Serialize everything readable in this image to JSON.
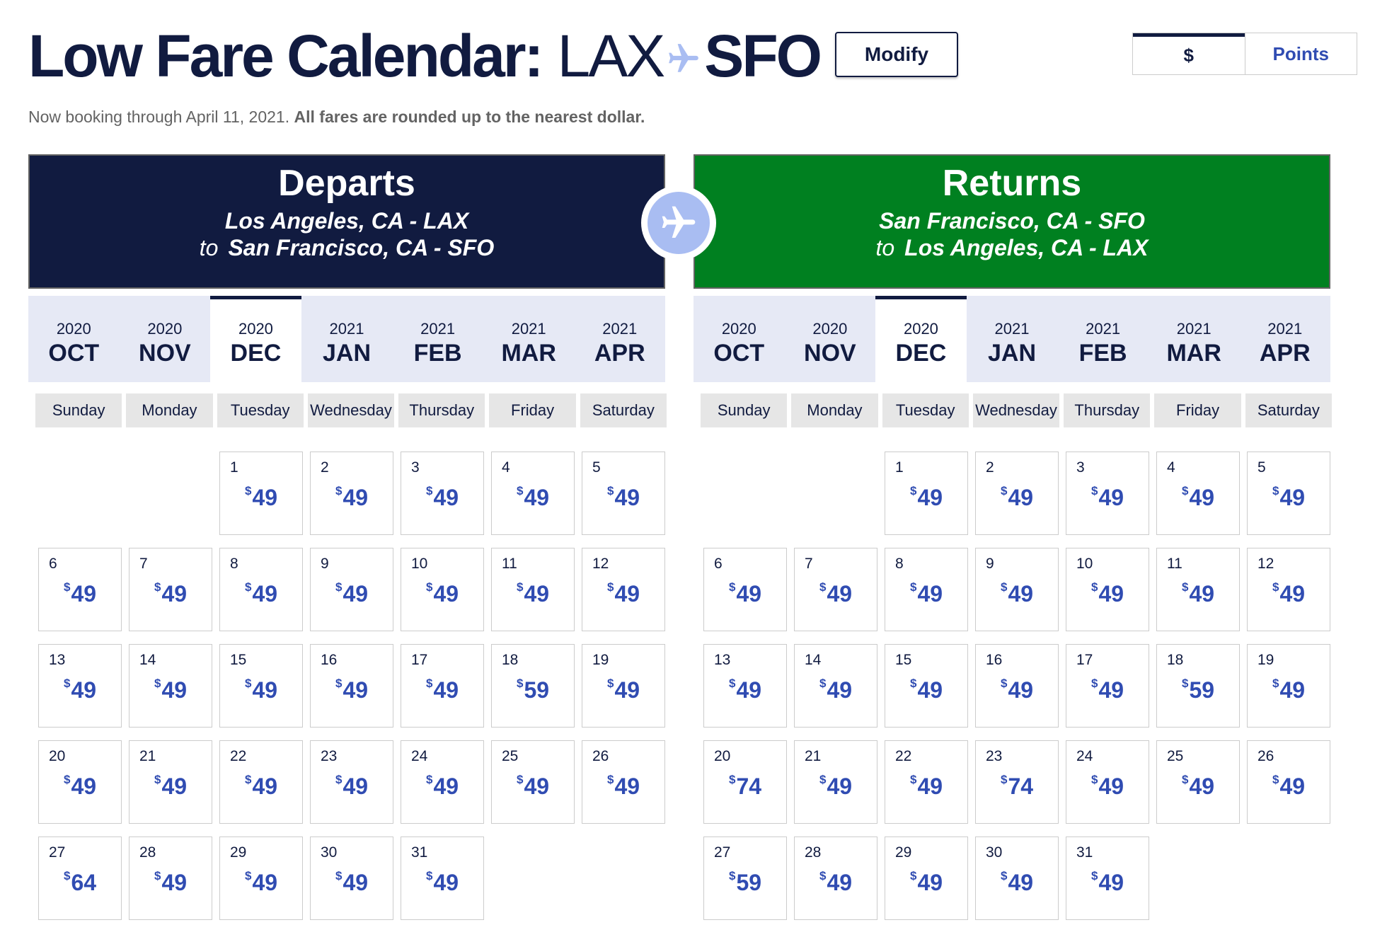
{
  "header": {
    "title_bold": "Low Fare Calendar:",
    "origin": "LAX",
    "destination": "SFO",
    "modify_label": "Modify",
    "currency_options": [
      "$",
      "Points"
    ],
    "currency_selected": "$"
  },
  "notice": {
    "text": "Now booking through April 11, 2021.",
    "bold": "All fares are rounded up to the nearest dollar."
  },
  "colors": {
    "navy": "#111b40",
    "green": "#008020",
    "fare_blue": "#304cb2",
    "month_bar": "#e6e9f5",
    "plane_circle": "#a9bdf2"
  },
  "icons": {
    "title_plane": "airplane-icon",
    "center_plane": "airplane-icon"
  },
  "months": [
    {
      "year": "2020",
      "name": "OCT"
    },
    {
      "year": "2020",
      "name": "NOV"
    },
    {
      "year": "2020",
      "name": "DEC"
    },
    {
      "year": "2021",
      "name": "JAN"
    },
    {
      "year": "2021",
      "name": "FEB"
    },
    {
      "year": "2021",
      "name": "MAR"
    },
    {
      "year": "2021",
      "name": "APR"
    }
  ],
  "weekdays": [
    "Sunday",
    "Monday",
    "Tuesday",
    "Wednesday",
    "Thursday",
    "Friday",
    "Saturday"
  ],
  "departs": {
    "heading": "Departs",
    "from": "Los Angeles, CA - LAX",
    "to_word": "to",
    "to": "San Francisco, CA - SFO",
    "selected_month": "DEC",
    "leading_blanks": 2,
    "currency_symbol": "$",
    "fares": [
      49,
      49,
      49,
      49,
      49,
      49,
      49,
      49,
      49,
      49,
      49,
      49,
      49,
      49,
      49,
      49,
      49,
      59,
      49,
      49,
      49,
      49,
      49,
      49,
      49,
      49,
      64,
      49,
      49,
      49,
      49
    ]
  },
  "returns": {
    "heading": "Returns",
    "from": "San Francisco, CA - SFO",
    "to_word": "to",
    "to": "Los Angeles, CA - LAX",
    "selected_month": "DEC",
    "leading_blanks": 2,
    "currency_symbol": "$",
    "fares": [
      49,
      49,
      49,
      49,
      49,
      49,
      49,
      49,
      49,
      49,
      49,
      49,
      49,
      49,
      49,
      49,
      49,
      59,
      49,
      74,
      49,
      49,
      74,
      49,
      49,
      49,
      59,
      49,
      49,
      49,
      49
    ]
  }
}
